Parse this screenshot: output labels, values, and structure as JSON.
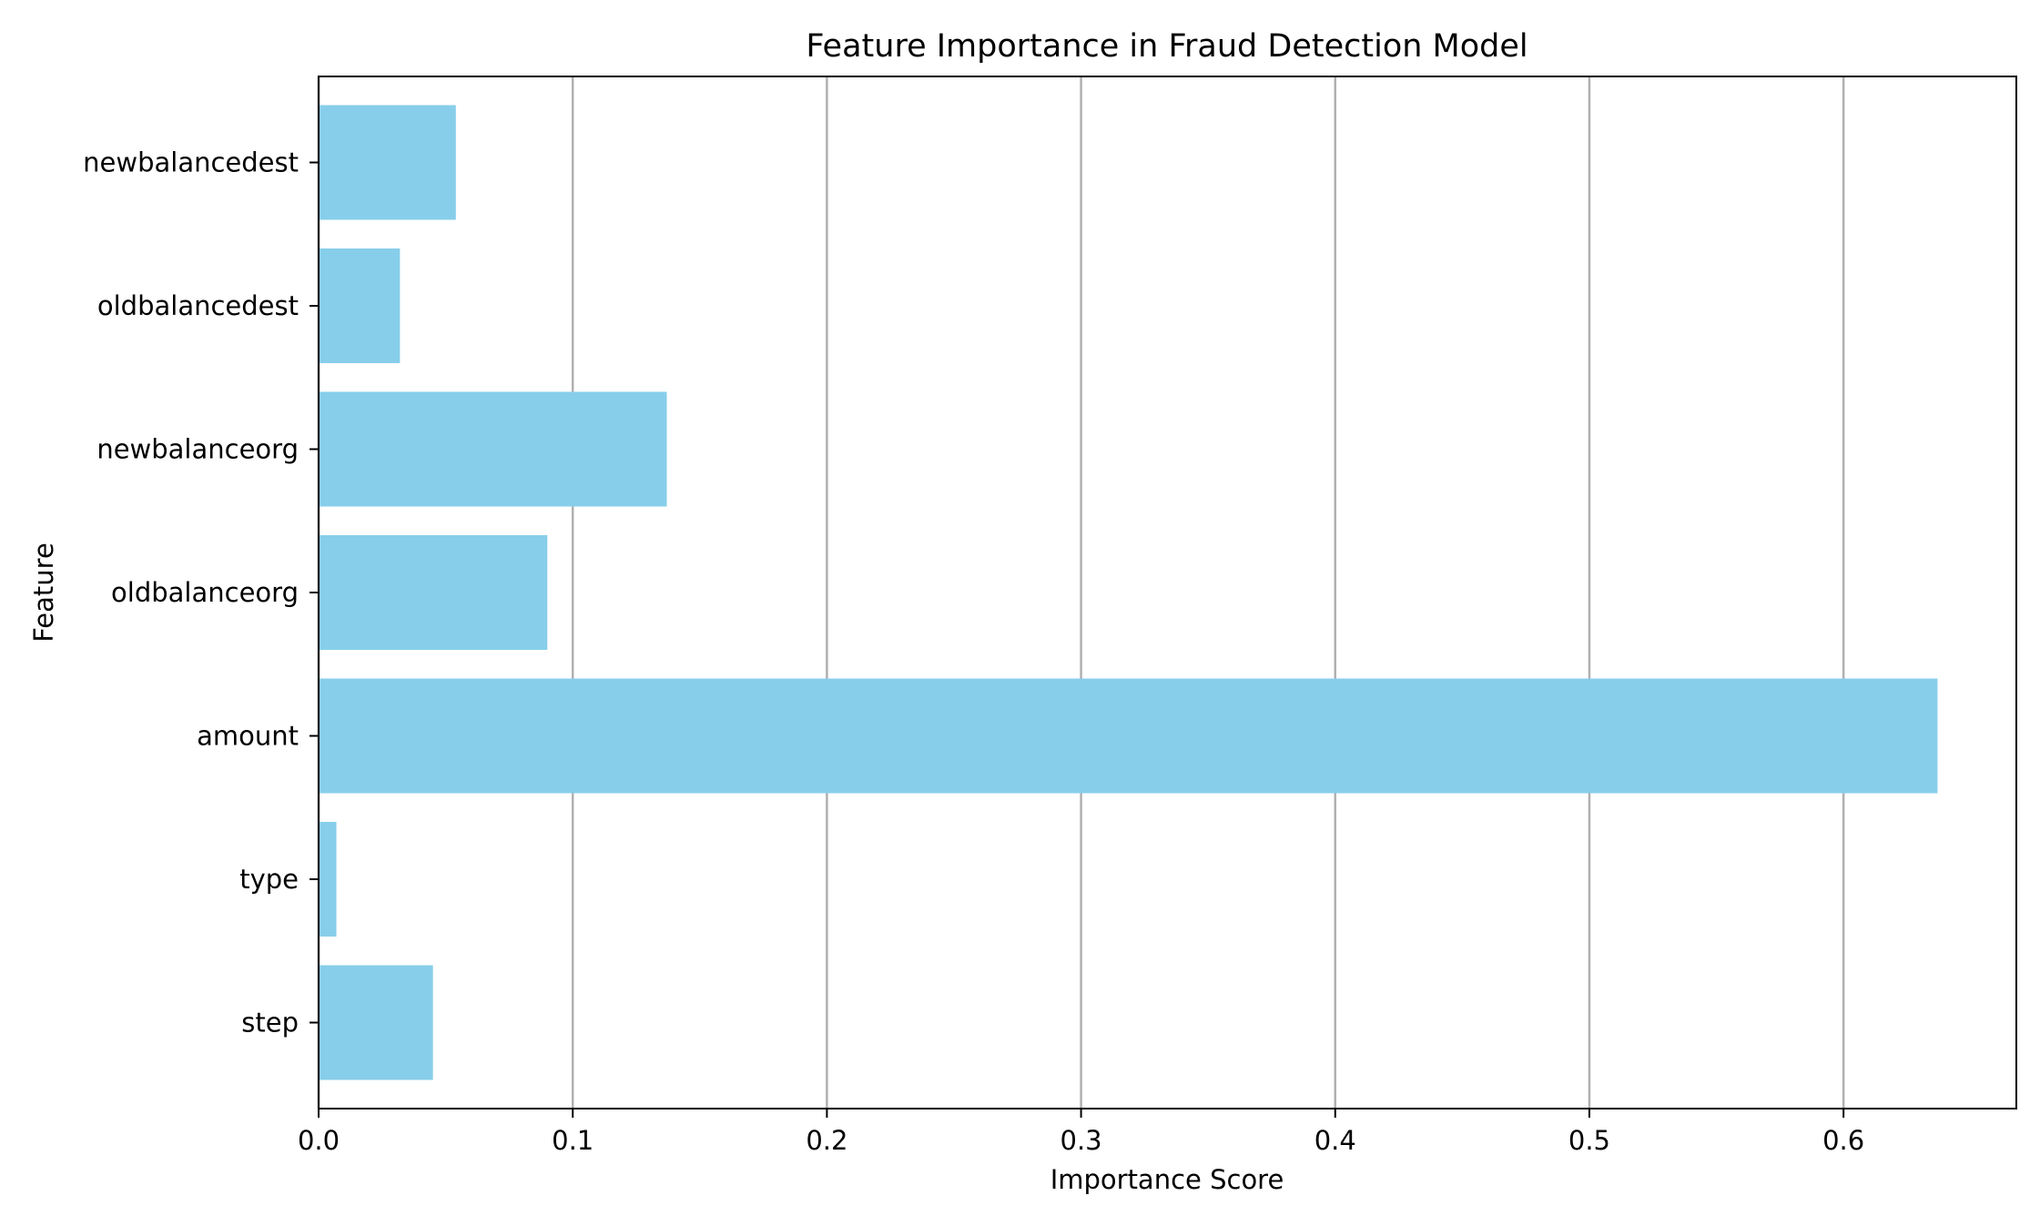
{
  "chart_data": {
    "type": "bar",
    "orientation": "horizontal",
    "title": "Feature Importance in Fraud Detection Model",
    "xlabel": "Importance Score",
    "ylabel": "Feature",
    "categories": [
      "step",
      "type",
      "amount",
      "oldbalanceorg",
      "newbalanceorg",
      "oldbalancedest",
      "newbalancedest"
    ],
    "values": [
      0.045,
      0.007,
      0.637,
      0.09,
      0.137,
      0.032,
      0.054
    ],
    "xlim": [
      0,
      0.668
    ],
    "xticks": [
      0.0,
      0.1,
      0.2,
      0.3,
      0.4,
      0.5,
      0.6
    ],
    "xtick_labels": [
      "0.0",
      "0.1",
      "0.2",
      "0.3",
      "0.4",
      "0.5",
      "0.6"
    ],
    "grid": "x-axis vertical lines",
    "bar_color": "#87ceeb",
    "grid_color": "#b0b0b0"
  }
}
